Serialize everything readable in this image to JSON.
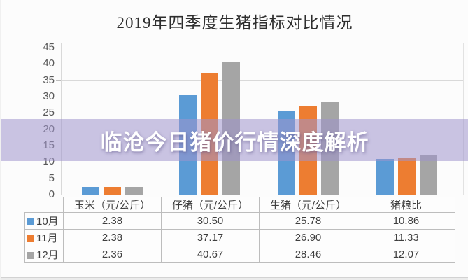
{
  "title": "2019年四季度生猪指标对比情况",
  "watermark": {
    "text": "临沧今日猪价行情深度解析",
    "band_color": "#9E94CC"
  },
  "chart_data": {
    "type": "bar",
    "title": "2019年四季度生猪指标对比情况",
    "categories": [
      "玉米（元/公斤）",
      "仔猪（元/公斤）",
      "生猪（元/公斤）",
      "猪粮比"
    ],
    "series": [
      {
        "name": "10月",
        "color": "#5B9BD5",
        "values": [
          2.38,
          30.5,
          25.78,
          10.86
        ]
      },
      {
        "name": "11月",
        "color": "#ED7D31",
        "values": [
          2.38,
          37.17,
          26.9,
          11.33
        ]
      },
      {
        "name": "12月",
        "color": "#A5A5A5",
        "values": [
          2.36,
          40.67,
          28.46,
          12.07
        ]
      }
    ],
    "ylim": [
      0,
      45
    ],
    "ytick_step": 5,
    "grid": true,
    "legend_position": "data-table row labels (left column)"
  },
  "data_table": {
    "column_headers": [
      "玉米（元/公斤）",
      "仔猪（元/公斤）",
      "生猪（元/公斤）",
      "猪粮比"
    ],
    "rows": [
      {
        "label": "10月",
        "key_color": "#5B9BD5",
        "values": [
          "2.38",
          "30.50",
          "25.78",
          "10.86"
        ]
      },
      {
        "label": "11月",
        "key_color": "#ED7D31",
        "values": [
          "2.38",
          "37.17",
          "26.90",
          "11.33"
        ]
      },
      {
        "label": "12月",
        "key_color": "#A5A5A5",
        "values": [
          "2.36",
          "40.67",
          "28.46",
          "12.07"
        ]
      }
    ]
  }
}
